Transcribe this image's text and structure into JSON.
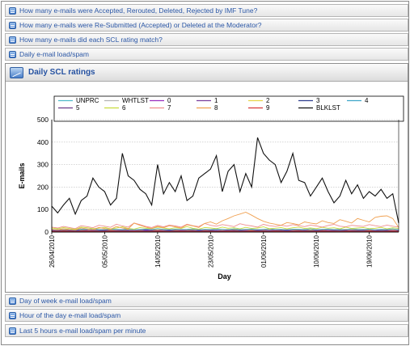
{
  "collapsed_top": [
    {
      "label": "How many e-mails were Accepted, Rerouted, Deleted, Rejected by IMF Tune?"
    },
    {
      "label": "How many e-mails were Re-Submitted (Accepted) or Deleted at the Moderator?"
    },
    {
      "label": "How many e-mails did each SCL rating match?"
    },
    {
      "label": "Daily e-mail load/spam"
    }
  ],
  "expanded_panel": {
    "title": "Daily SCL ratings"
  },
  "collapsed_bottom": [
    {
      "label": "Day of week e-mail load/spam"
    },
    {
      "label": "Hour of the day e-mail load/spam"
    },
    {
      "label": "Last 5 hours e-mail load/spam per minute"
    }
  ],
  "icon": "chart-report-icon",
  "chart_data": {
    "type": "line",
    "title": "",
    "xlabel": "Day",
    "ylabel": "E-mails",
    "ylim": [
      0,
      500
    ],
    "yticks": [
      0,
      100,
      200,
      300,
      400,
      500
    ],
    "grid": true,
    "legend_position": "top",
    "x": [
      "26/04/2010",
      "27/04/2010",
      "28/04/2010",
      "29/04/2010",
      "30/04/2010",
      "01/05/2010",
      "02/05/2010",
      "03/05/2010",
      "04/05/2010",
      "05/05/2010",
      "06/05/2010",
      "07/05/2010",
      "08/05/2010",
      "09/05/2010",
      "10/05/2010",
      "11/05/2010",
      "12/05/2010",
      "13/05/2010",
      "14/05/2010",
      "15/05/2010",
      "16/05/2010",
      "17/05/2010",
      "18/05/2010",
      "19/05/2010",
      "20/05/2010",
      "21/05/2010",
      "22/05/2010",
      "23/05/2010",
      "24/05/2010",
      "25/05/2010",
      "26/05/2010",
      "27/05/2010",
      "28/05/2010",
      "29/05/2010",
      "30/05/2010",
      "31/05/2010",
      "01/06/2010",
      "02/06/2010",
      "03/06/2010",
      "04/06/2010",
      "05/06/2010",
      "06/06/2010",
      "07/06/2010",
      "08/06/2010",
      "09/06/2010",
      "10/06/2010",
      "11/06/2010",
      "12/06/2010",
      "13/06/2010",
      "14/06/2010",
      "15/06/2010",
      "16/06/2010",
      "17/06/2010",
      "18/06/2010",
      "19/06/2010",
      "20/06/2010",
      "21/06/2010",
      "22/06/2010",
      "23/06/2010",
      "24/06/2010"
    ],
    "xtick_labels": [
      "26/04/2010",
      "05/05/2010",
      "14/05/2010",
      "23/05/2010",
      "01/06/2010",
      "10/06/2010",
      "19/06/2010"
    ],
    "series": [
      {
        "name": "UNPRC",
        "color": "#4fb9c9",
        "values": [
          3,
          2,
          3,
          2,
          3,
          3,
          4,
          3,
          3,
          2,
          3,
          3,
          2,
          3,
          4,
          3,
          2,
          3,
          3,
          3,
          2,
          3,
          3,
          2,
          3,
          3,
          4,
          3,
          3,
          2,
          3,
          3,
          2,
          3,
          3,
          2,
          3,
          3,
          4,
          3,
          3,
          2,
          3,
          3,
          3,
          4,
          3,
          3,
          2,
          3,
          3,
          3,
          2,
          3,
          3,
          2,
          3,
          3,
          4,
          3
        ]
      },
      {
        "name": "WHTLST",
        "color": "#b3b3b3",
        "values": [
          5,
          6,
          5,
          7,
          6,
          5,
          6,
          7,
          5,
          6,
          5,
          6,
          7,
          5,
          6,
          6,
          5,
          7,
          6,
          5,
          6,
          5,
          7,
          6,
          5,
          6,
          7,
          5,
          6,
          5,
          6,
          7,
          6,
          5,
          6,
          5,
          7,
          6,
          5,
          6,
          5,
          6,
          7,
          5,
          6,
          5,
          6,
          5,
          7,
          6,
          5,
          6,
          5,
          6,
          7,
          5,
          6,
          5,
          6,
          5
        ]
      },
      {
        "name": "0",
        "color": "#9a2fbf",
        "values": [
          8,
          6,
          9,
          7,
          6,
          10,
          8,
          7,
          9,
          6,
          8,
          7,
          9,
          8,
          6,
          7,
          10,
          8,
          9,
          7,
          6,
          8,
          9,
          7,
          6,
          8,
          10,
          9,
          7,
          6,
          8,
          9,
          7,
          8,
          6,
          9,
          8,
          7,
          10,
          8,
          9,
          7,
          6,
          8,
          9,
          7,
          8,
          10,
          9,
          7,
          6,
          8,
          9,
          7,
          8,
          6,
          9,
          8,
          7,
          6
        ]
      },
      {
        "name": "1",
        "color": "#7a3f9c",
        "values": [
          4,
          3,
          4,
          5,
          3,
          4,
          5,
          4,
          3,
          4,
          5,
          3,
          4,
          4,
          5,
          3,
          4,
          5,
          4,
          3,
          4,
          5,
          4,
          3,
          4,
          5,
          3,
          4,
          4,
          5,
          3,
          4,
          5,
          4,
          3,
          4,
          5,
          4,
          3,
          4,
          5,
          3,
          4,
          4,
          5,
          3,
          4,
          5,
          4,
          3,
          4,
          5,
          4,
          3,
          4,
          5,
          3,
          4,
          4,
          3
        ]
      },
      {
        "name": "2",
        "color": "#e8d44a",
        "values": [
          10,
          12,
          9,
          11,
          13,
          10,
          12,
          11,
          10,
          12,
          9,
          11,
          10,
          12,
          11,
          10,
          13,
          11,
          10,
          12,
          11,
          9,
          12,
          10,
          11,
          12,
          10,
          11,
          13,
          10,
          12,
          11,
          10,
          12,
          9,
          11,
          10,
          12,
          11,
          10,
          12,
          11,
          10,
          12,
          9,
          11,
          10,
          12,
          11,
          10,
          12,
          11,
          10,
          12,
          9,
          11,
          10,
          12,
          11,
          10
        ]
      },
      {
        "name": "3",
        "color": "#2f3f8f",
        "values": [
          6,
          5,
          7,
          6,
          5,
          6,
          7,
          5,
          6,
          7,
          6,
          5,
          6,
          7,
          5,
          6,
          6,
          7,
          5,
          6,
          7,
          6,
          5,
          6,
          7,
          5,
          6,
          6,
          7,
          5,
          6,
          7,
          6,
          5,
          6,
          7,
          5,
          6,
          6,
          7,
          5,
          6,
          7,
          6,
          5,
          6,
          7,
          5,
          6,
          6,
          7,
          5,
          6,
          7,
          6,
          5,
          6,
          7,
          5,
          6
        ]
      },
      {
        "name": "4",
        "color": "#3fa6c9",
        "values": [
          12,
          10,
          14,
          11,
          9,
          13,
          12,
          15,
          11,
          10,
          13,
          12,
          11,
          14,
          10,
          12,
          13,
          11,
          15,
          12,
          10,
          13,
          11,
          12,
          14,
          10,
          12,
          11,
          13,
          12,
          10,
          14,
          11,
          12,
          13,
          10,
          12,
          14,
          11,
          12,
          10,
          13,
          12,
          11,
          14,
          10,
          12,
          13,
          11,
          12,
          10,
          14,
          12,
          11,
          13,
          10,
          12,
          11,
          14,
          10
        ]
      },
      {
        "name": "5",
        "color": "#6a3a88",
        "values": [
          7,
          6,
          8,
          7,
          6,
          7,
          8,
          6,
          7,
          8,
          7,
          6,
          7,
          8,
          6,
          7,
          7,
          8,
          6,
          7,
          8,
          7,
          6,
          7,
          8,
          6,
          7,
          7,
          8,
          6,
          7,
          8,
          7,
          6,
          7,
          8,
          6,
          7,
          7,
          8,
          6,
          7,
          8,
          7,
          6,
          7,
          8,
          6,
          7,
          7,
          8,
          6,
          7,
          8,
          7,
          6,
          7,
          8,
          6,
          7
        ]
      },
      {
        "name": "6",
        "color": "#c8dc3c",
        "values": [
          18,
          14,
          20,
          16,
          12,
          22,
          19,
          15,
          17,
          21,
          14,
          18,
          23,
          16,
          13,
          20,
          17,
          15,
          22,
          18,
          14,
          19,
          16,
          24,
          17,
          13,
          20,
          18,
          15,
          22,
          17,
          19,
          14,
          21,
          16,
          18,
          23,
          15,
          17,
          20,
          14,
          19,
          22,
          16,
          18,
          15,
          21,
          17,
          19,
          14,
          22,
          16,
          18,
          20,
          15,
          17,
          21,
          14,
          19,
          16
        ]
      },
      {
        "name": "7",
        "color": "#f08e8e",
        "values": [
          22,
          18,
          25,
          20,
          15,
          28,
          24,
          19,
          30,
          26,
          21,
          35,
          27,
          22,
          40,
          33,
          25,
          20,
          29,
          23,
          31,
          27,
          22,
          35,
          28,
          24,
          38,
          30,
          26,
          33,
          29,
          24,
          37,
          31,
          27,
          22,
          34,
          28,
          25,
          30,
          26,
          33,
          28,
          24,
          31,
          27,
          22,
          29,
          34,
          26,
          23,
          30,
          27,
          25,
          33,
          28,
          24,
          31,
          26,
          22
        ]
      },
      {
        "name": "8",
        "color": "#f0a050",
        "values": [
          12,
          9,
          15,
          11,
          8,
          18,
          14,
          10,
          20,
          16,
          12,
          25,
          18,
          14,
          40,
          30,
          22,
          16,
          25,
          19,
          28,
          23,
          18,
          32,
          27,
          20,
          38,
          45,
          35,
          50,
          60,
          72,
          80,
          88,
          75,
          60,
          48,
          40,
          35,
          30,
          42,
          38,
          32,
          45,
          40,
          36,
          50,
          42,
          38,
          55,
          48,
          40,
          60,
          52,
          45,
          65,
          70,
          72,
          60,
          20
        ]
      },
      {
        "name": "9",
        "color": "#d83838",
        "values": [
          3,
          2,
          4,
          3,
          2,
          3,
          4,
          3,
          2,
          3,
          4,
          3,
          3,
          2,
          4,
          3,
          2,
          3,
          4,
          3,
          2,
          3,
          4,
          3,
          3,
          2,
          4,
          3,
          2,
          3,
          4,
          3,
          2,
          3,
          4,
          3,
          3,
          2,
          4,
          3,
          2,
          3,
          4,
          3,
          2,
          3,
          4,
          3,
          3,
          2,
          4,
          3,
          2,
          3,
          4,
          3,
          2,
          3,
          4,
          3
        ]
      },
      {
        "name": "BLKLST",
        "color": "#111111",
        "values": [
          115,
          85,
          120,
          150,
          80,
          140,
          160,
          240,
          200,
          180,
          120,
          150,
          350,
          250,
          230,
          190,
          170,
          120,
          300,
          170,
          220,
          180,
          250,
          140,
          160,
          240,
          260,
          280,
          340,
          180,
          270,
          300,
          180,
          260,
          200,
          420,
          350,
          320,
          300,
          220,
          270,
          350,
          230,
          220,
          160,
          200,
          240,
          180,
          130,
          160,
          230,
          170,
          210,
          150,
          180,
          160,
          190,
          150,
          170,
          40
        ]
      }
    ]
  }
}
